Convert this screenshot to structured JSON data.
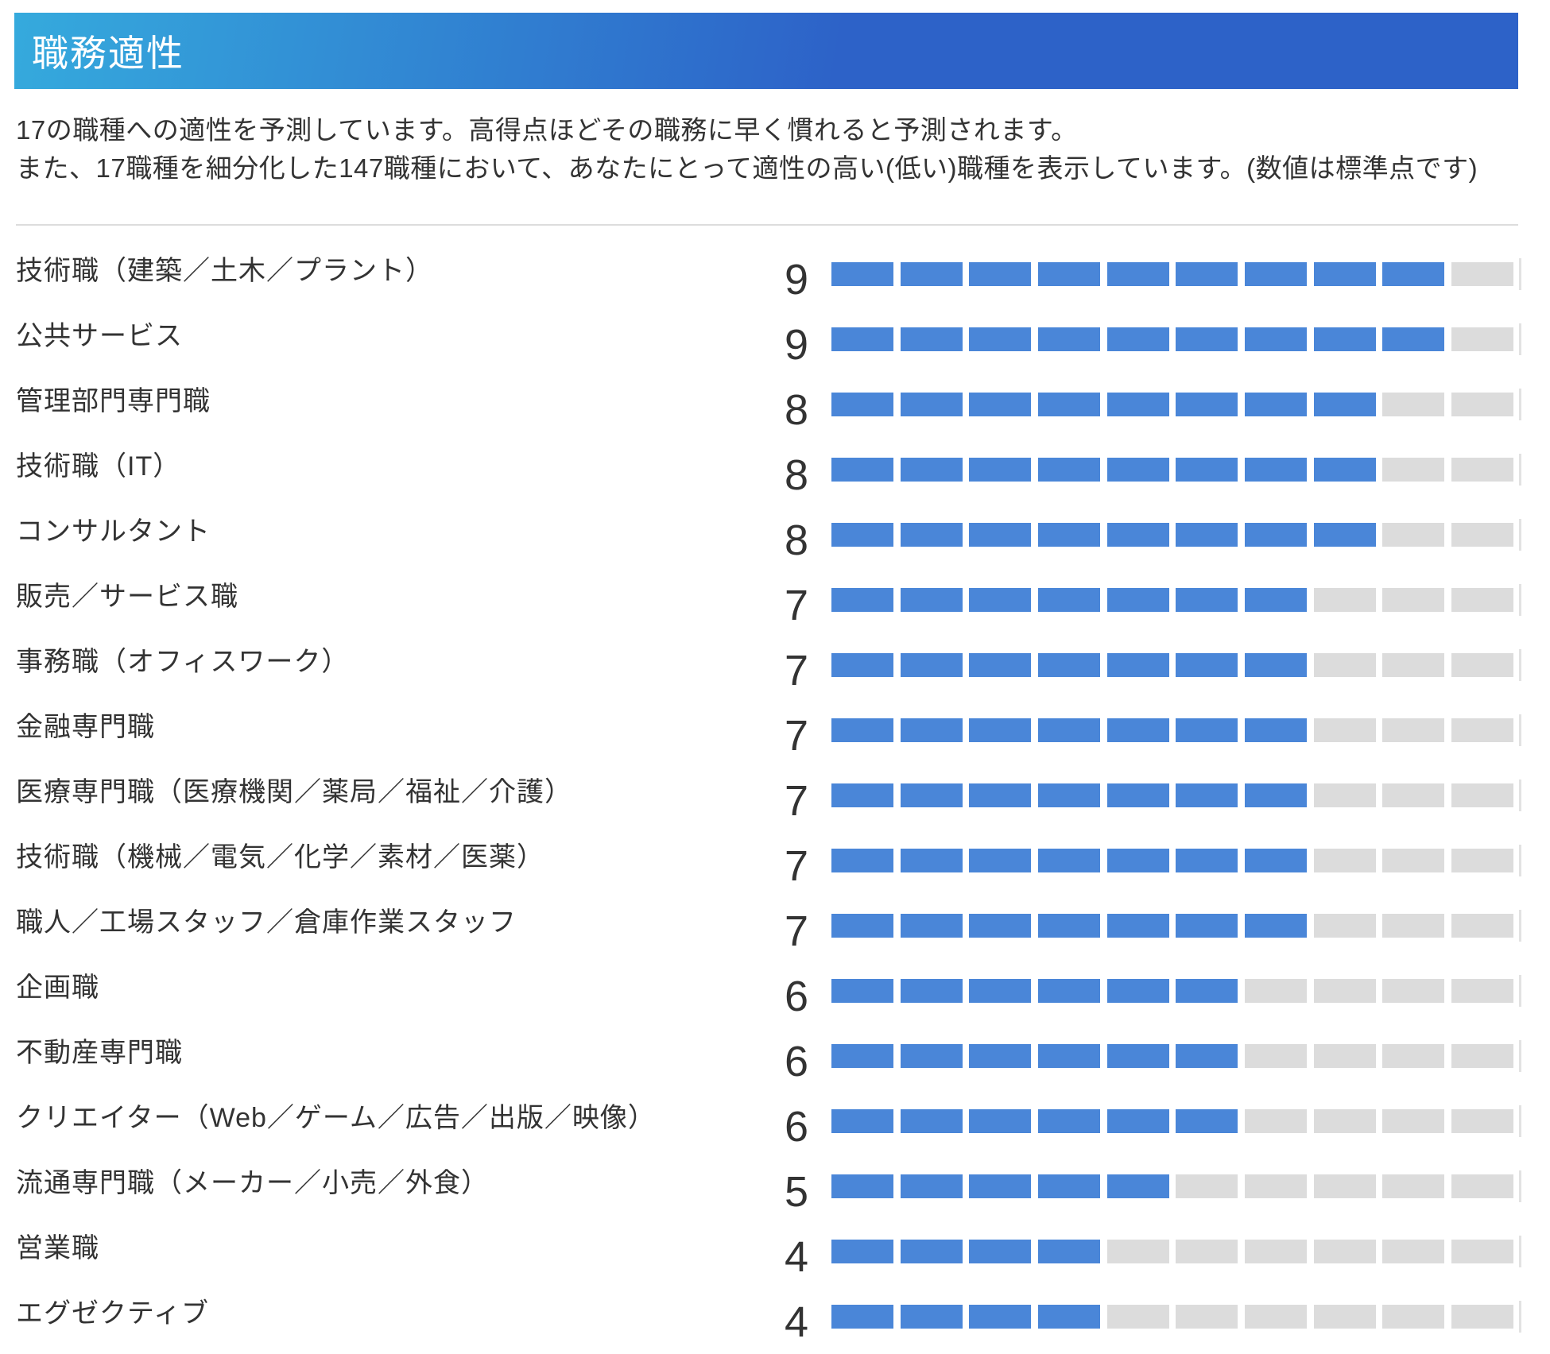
{
  "header": {
    "title": "職務適性"
  },
  "description": {
    "line1": "17の職種への適性を予測しています。高得点ほどその職務に早く慣れると予測されます。",
    "line2": "また、17職種を細分化した147職種において、あなたにとって適性の高い(低い)職種を表示しています。(数値は標準点です)"
  },
  "colors": {
    "accent_blue": "#4a86d8",
    "bar_empty_gray": "#dcdcdc",
    "banner_gradient_start": "#35aadd",
    "banner_gradient_end": "#2d62c8",
    "text": "#333333"
  },
  "chart_data": {
    "type": "bar",
    "orientation": "horizontal",
    "title": "職務適性",
    "xlabel": "",
    "ylabel": "",
    "value_range": [
      0,
      10
    ],
    "segments_per_bar": 10,
    "grid": false,
    "legend": "none",
    "categories": [
      "技術職（建築／土木／プラント）",
      "公共サービス",
      "管理部門専門職",
      "技術職（IT）",
      "コンサルタント",
      "販売／サービス職",
      "事務職（オフィスワーク）",
      "金融専門職",
      "医療専門職（医療機関／薬局／福祉／介護）",
      "技術職（機械／電気／化学／素材／医薬）",
      "職人／工場スタッフ／倉庫作業スタッフ",
      "企画職",
      "不動産専門職",
      "クリエイター（Web／ゲーム／広告／出版／映像）",
      "流通専門職（メーカー／小売／外食）",
      "営業職",
      "エグゼクティブ"
    ],
    "values": [
      9,
      9,
      8,
      8,
      8,
      7,
      7,
      7,
      7,
      7,
      7,
      6,
      6,
      6,
      5,
      4,
      4
    ]
  }
}
